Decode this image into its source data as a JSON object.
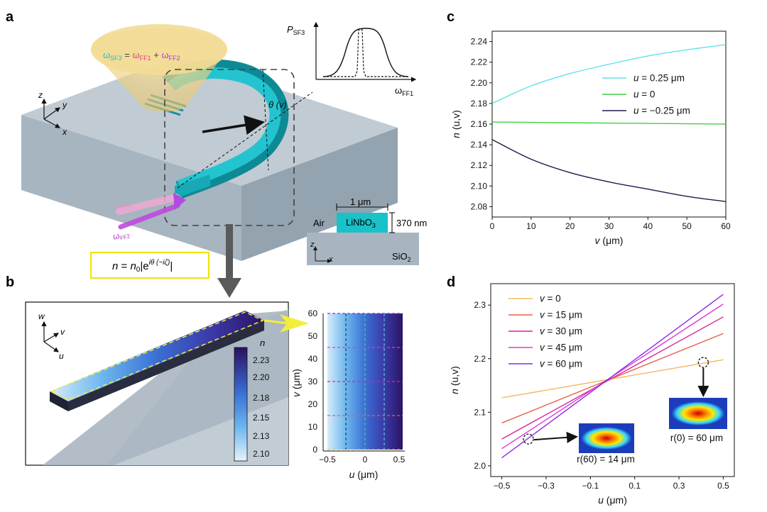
{
  "panels": {
    "a": "a",
    "b": "b",
    "c": "c",
    "d": "d"
  },
  "panel_a": {
    "omega_eq": {
      "sf3": "ω",
      "sf3_sub": "SF3",
      "eq": " = ",
      "ff1": "ω",
      "ff1_sub": "FF1",
      "plus": " + ",
      "ff2": "ω",
      "ff2_sub": "FF2"
    },
    "inset_plot": {
      "ylabel": "P",
      "ylabel_sub": "SF3",
      "xlabel": "ω",
      "xlabel_sub": "FF1"
    },
    "theta_label": "θ (v)",
    "axes": {
      "z": "z",
      "y": "y",
      "x": "x"
    },
    "input_ff1": {
      "text": "ω",
      "sub": "FF1"
    },
    "input_ff2": {
      "text": "ω",
      "sub": "FF2"
    },
    "formula": {
      "n": "n",
      "eq": " = ",
      "n0": "n",
      "n0_sub": "0",
      "abs_open": "|e",
      "exp": "iθ (−iζ)",
      "abs_close": "|"
    },
    "cross_section": {
      "width_label": "1 μm",
      "height_label": "370 nm",
      "air": "Air",
      "core": "LiNbO",
      "core_sub": "3",
      "substrate": "SiO",
      "substrate_sub": "2",
      "axis_z": "z",
      "axis_x": "x"
    }
  },
  "panel_b": {
    "axes": {
      "w": "w",
      "v": "v",
      "u": "u"
    },
    "colorbar": {
      "title": "n",
      "ticks": [
        "2.23",
        "2.20",
        "2.18",
        "2.15",
        "2.13",
        "2.10"
      ]
    },
    "map": {
      "ylabel_var": "v",
      "ylabel_unit": " (μm)",
      "xlabel_var": "u",
      "xlabel_unit": " (μm)",
      "yticks": [
        "60",
        "50",
        "40",
        "30",
        "20",
        "10",
        "0"
      ],
      "xticks": [
        "−0.5",
        "0",
        "0.5"
      ]
    }
  },
  "colors": {
    "c_025": "#5fe3ec",
    "c_0": "#3fd13f",
    "c_m025": "#1e1b50",
    "d_0": "#f2b860",
    "d_15": "#e8604c",
    "d_30": "#d8249a",
    "d_45": "#d83ad8",
    "d_60": "#8a2be2"
  },
  "chart_data": [
    {
      "type": "line",
      "title": "c",
      "xlabel_var": "v",
      "xlabel_unit": " (μm)",
      "ylabel_var": "n",
      "ylabel_unit": " (u,v)",
      "xlim": [
        0,
        60
      ],
      "ylim": [
        2.07,
        2.25
      ],
      "xticks": [
        0,
        10,
        20,
        30,
        40,
        50,
        60
      ],
      "xtick_labels": [
        "0",
        "10",
        "20",
        "30",
        "40",
        "50",
        "60"
      ],
      "yticks": [
        2.08,
        2.1,
        2.12,
        2.14,
        2.16,
        2.18,
        2.2,
        2.22,
        2.24
      ],
      "ytick_labels": [
        "2.08",
        "2.10",
        "2.12",
        "2.14",
        "2.16",
        "2.18",
        "2.20",
        "2.22",
        "2.24"
      ],
      "legend_position": "right",
      "series": [
        {
          "name": "u = 0.25 μm",
          "var": "u",
          "rest": " = 0.25 μm",
          "color": "#5fe3ec",
          "x": [
            0,
            10,
            20,
            30,
            40,
            50,
            60
          ],
          "y": [
            2.18,
            2.197,
            2.209,
            2.218,
            2.226,
            2.232,
            2.237
          ]
        },
        {
          "name": "u = 0",
          "var": "u",
          "rest": " = 0",
          "color": "#3fd13f",
          "x": [
            0,
            30,
            60
          ],
          "y": [
            2.162,
            2.161,
            2.16
          ]
        },
        {
          "name": "u = −0.25 μm",
          "var": "u",
          "rest": " = −0.25 μm",
          "color": "#1e1b50",
          "x": [
            0,
            10,
            20,
            30,
            40,
            50,
            60
          ],
          "y": [
            2.145,
            2.126,
            2.113,
            2.104,
            2.097,
            2.09,
            2.085
          ]
        }
      ]
    },
    {
      "type": "line",
      "title": "d",
      "xlabel_var": "u",
      "xlabel_unit": " (μm)",
      "ylabel_var": "n",
      "ylabel_unit": " (u,v)",
      "xlim": [
        -0.55,
        0.55
      ],
      "ylim": [
        1.98,
        2.34
      ],
      "xticks": [
        -0.5,
        -0.3,
        -0.1,
        0.1,
        0.3,
        0.5
      ],
      "xtick_labels": [
        "−0.5",
        "−0.3",
        "−0.1",
        "0.1",
        "0.3",
        "0.5"
      ],
      "yticks": [
        2.0,
        2.1,
        2.2,
        2.3
      ],
      "ytick_labels": [
        "2.0",
        "2.1",
        "2.2",
        "2.3"
      ],
      "legend_position": "top-left",
      "series": [
        {
          "name": "v = 0",
          "var": "v",
          "rest": " = 0",
          "color": "#f2b860",
          "x": [
            -0.5,
            0.5
          ],
          "y": [
            2.127,
            2.198
          ]
        },
        {
          "name": "v = 15 μm",
          "var": "v",
          "rest": " = 15 μm",
          "color": "#e8604c",
          "x": [
            -0.5,
            0.5
          ],
          "y": [
            2.08,
            2.247
          ]
        },
        {
          "name": "v = 30 μm",
          "var": "v",
          "rest": " = 30 μm",
          "color": "#d8249a",
          "x": [
            -0.5,
            0.5
          ],
          "y": [
            2.05,
            2.278
          ]
        },
        {
          "name": "v = 45 μm",
          "var": "v",
          "rest": " = 45 μm",
          "color": "#d83ad8",
          "x": [
            -0.5,
            0.5
          ],
          "y": [
            2.032,
            2.302
          ]
        },
        {
          "name": "v = 60 μm",
          "var": "v",
          "rest": " = 60 μm",
          "color": "#8a2be2",
          "x": [
            -0.5,
            0.5
          ],
          "y": [
            2.015,
            2.32
          ]
        }
      ],
      "annotations": [
        {
          "label": "r(60) = 14 μm",
          "u": -0.38,
          "n": 2.05
        },
        {
          "label": "r(0) = 60 μm",
          "u": 0.41,
          "n": 2.193
        }
      ]
    }
  ]
}
